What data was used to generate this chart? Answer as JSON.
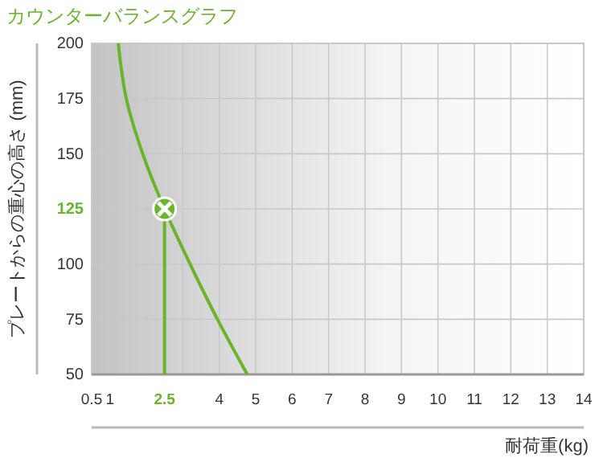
{
  "chart_data": {
    "type": "line",
    "title": "カウンターバランスグラフ",
    "xlabel": "耐荷重(kg)",
    "ylabel": "プレートからの重心の高さ (mm)",
    "xlim": [
      0.5,
      14
    ],
    "xticks": [
      0.5,
      1,
      2.5,
      4,
      5,
      6,
      7,
      8,
      9,
      10,
      11,
      12,
      13,
      14
    ],
    "ylim": [
      50,
      200
    ],
    "yticks": [
      50,
      75,
      100,
      125,
      150,
      175,
      200
    ],
    "grid": true,
    "series": [
      {
        "color": "#6ab42d",
        "x": [
          1.23,
          1.45,
          1.9,
          2.5,
          3.2,
          3.95,
          4.77
        ],
        "values": [
          200,
          175,
          150,
          125,
          100,
          75,
          50
        ],
        "marker": "none"
      },
      {
        "type": "line",
        "color": "#6ab42d",
        "x": [
          2.5,
          2.5
        ],
        "values": [
          50,
          125
        ],
        "marker": "none"
      },
      {
        "type": "scatter",
        "color": "#6ab42d",
        "x": [
          2.5
        ],
        "values": [
          125
        ],
        "marker": "circle"
      }
    ]
  }
}
